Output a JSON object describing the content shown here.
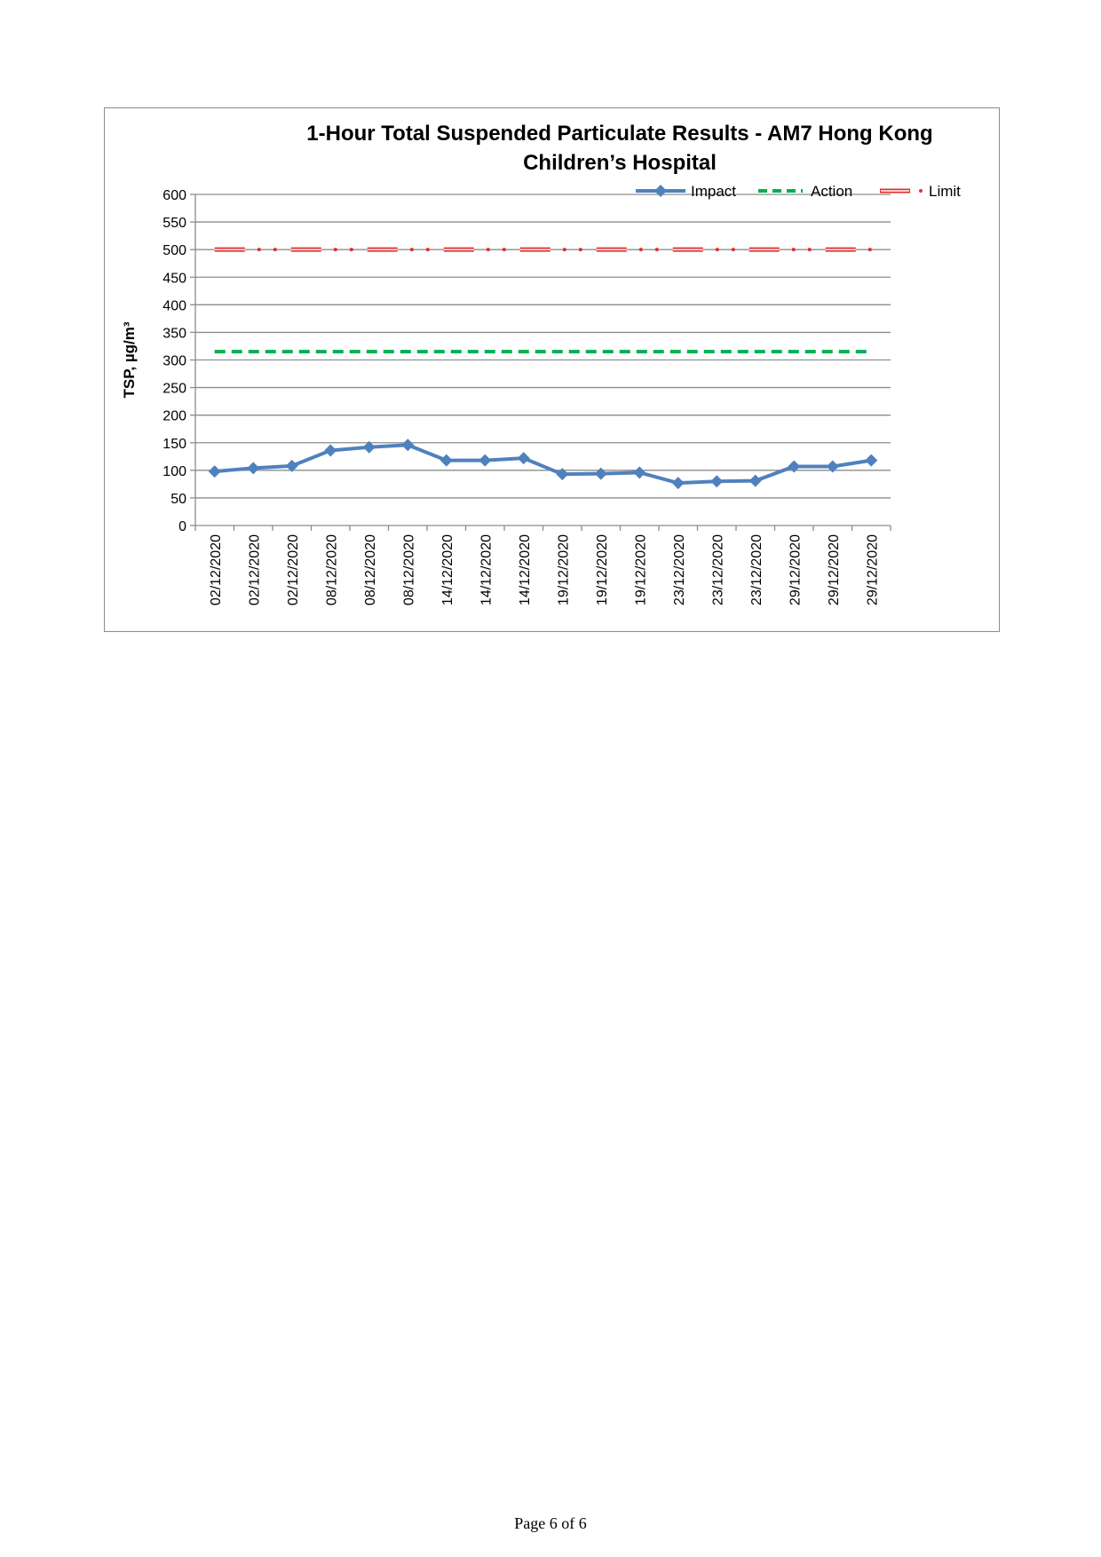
{
  "chart_data": {
    "type": "line",
    "title_lines": [
      "1-Hour Total Suspended Particulate Results - AM7 Hong Kong",
      "Children’s Hospital"
    ],
    "xlabel": "",
    "ylabel": "TSP, µg/m³",
    "ylim": [
      0,
      600
    ],
    "yticks": [
      0,
      50,
      100,
      150,
      200,
      250,
      300,
      350,
      400,
      450,
      500,
      550,
      600
    ],
    "categories": [
      "02/12/2020",
      "02/12/2020",
      "02/12/2020",
      "08/12/2020",
      "08/12/2020",
      "08/12/2020",
      "14/12/2020",
      "14/12/2020",
      "14/12/2020",
      "19/12/2020",
      "19/12/2020",
      "19/12/2020",
      "23/12/2020",
      "23/12/2020",
      "23/12/2020",
      "29/12/2020",
      "29/12/2020",
      "29/12/2020"
    ],
    "series": [
      {
        "name": "Impact",
        "color": "#4f81bd",
        "style": "solid-diamond",
        "values": [
          98,
          104,
          108,
          136,
          142,
          146,
          118,
          118,
          122,
          93,
          94,
          96,
          77,
          80,
          81,
          107,
          107,
          118
        ]
      },
      {
        "name": "Action",
        "color": "#00b050",
        "style": "dashed",
        "values": [
          315,
          315,
          315,
          315,
          315,
          315,
          315,
          315,
          315,
          315,
          315,
          315,
          315,
          315,
          315,
          315,
          315,
          315
        ]
      },
      {
        "name": "Limit",
        "color": "#e03030",
        "style": "dash-dot",
        "values": [
          500,
          500,
          500,
          500,
          500,
          500,
          500,
          500,
          500,
          500,
          500,
          500,
          500,
          500,
          500,
          500,
          500,
          500
        ]
      }
    ],
    "grid": true,
    "legend_position": "top-right"
  },
  "footer": {
    "page_label": "Page 6 of 6"
  }
}
